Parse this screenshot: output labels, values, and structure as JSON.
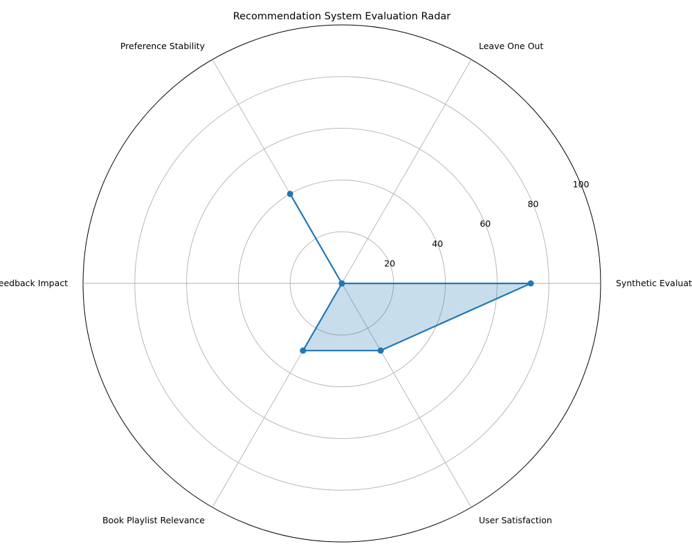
{
  "chart_data": {
    "type": "radar",
    "title": "Recommendation System Evaluation Radar",
    "axes": [
      "Synthetic Evaluation",
      "Leave One Out",
      "Preference Stability",
      "Feedback Impact",
      "Book Playlist Relevance",
      "User Satisfaction"
    ],
    "values": [
      73,
      0,
      40,
      0,
      30,
      30
    ],
    "rlim": [
      0,
      100
    ],
    "rticks": [
      20,
      40,
      60,
      80,
      100
    ],
    "grid": true,
    "colors": {
      "line": "#1f77b4",
      "fill": "#1f77b4",
      "grid": "#b0b0b0",
      "frame": "#000000"
    }
  }
}
